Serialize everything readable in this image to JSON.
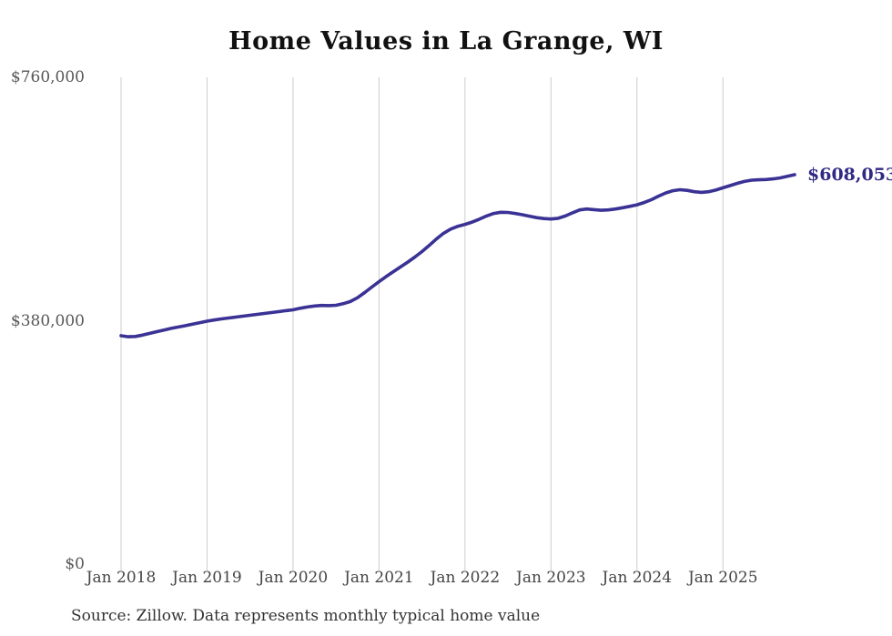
{
  "chart": {
    "source_note": "Source: Zillow. Data represents monthly typical home value"
  },
  "chart_data": {
    "type": "line",
    "title": "Home Values in La Grange, WI",
    "final_value_label": "$608,053",
    "final_value": 608053,
    "unit": "USD",
    "frequency": "monthly",
    "start_month": "2018-01",
    "end_month": "2025-11",
    "ylim": [
      0,
      760000
    ],
    "grid": "vertical-only",
    "legend": "none",
    "y_ticks": [
      {
        "value": 0,
        "label": "$0"
      },
      {
        "value": 380000,
        "label": "$380,000"
      },
      {
        "value": 760000,
        "label": "$760,000"
      }
    ],
    "x_tick_labels": [
      "Jan 2018",
      "Jan 2019",
      "Jan 2020",
      "Jan 2021",
      "Jan 2022",
      "Jan 2023",
      "Jan 2024",
      "Jan 2025"
    ],
    "x_ticks_every_months": 12,
    "series": [
      {
        "name": "Typical home value",
        "values": [
          356600,
          355000,
          355400,
          357500,
          360200,
          363000,
          365500,
          368000,
          370200,
          372400,
          374800,
          377000,
          379300,
          381200,
          382800,
          384300,
          385700,
          387100,
          388500,
          390000,
          391400,
          392800,
          394200,
          395700,
          397100,
          399500,
          401500,
          403000,
          403800,
          403600,
          404200,
          406500,
          410000,
          416000,
          424000,
          432500,
          441000,
          449000,
          456500,
          464000,
          471500,
          479500,
          488000,
          497500,
          507500,
          516500,
          523000,
          527500,
          530400,
          534000,
          538500,
          543500,
          547500,
          549400,
          549000,
          547500,
          545500,
          543200,
          541000,
          539500,
          538800,
          540000,
          543500,
          548500,
          553000,
          554500,
          553500,
          552500,
          553000,
          554500,
          556500,
          558500,
          561000,
          564500,
          569000,
          574500,
          579500,
          583000,
          584500,
          583500,
          581500,
          580500,
          581500,
          584000,
          587500,
          591000,
          594500,
          597500,
          599500,
          600000,
          600500,
          601500,
          603000,
          605500,
          608053
        ]
      }
    ],
    "colors": {
      "line": "#3a3294",
      "final_label": "#302a84",
      "grid": "#cccccc",
      "y_axis_text": "#565656",
      "x_axis_text": "#444444",
      "title_text": "#111111",
      "source_text": "#333333",
      "background": "#ffffff"
    }
  }
}
